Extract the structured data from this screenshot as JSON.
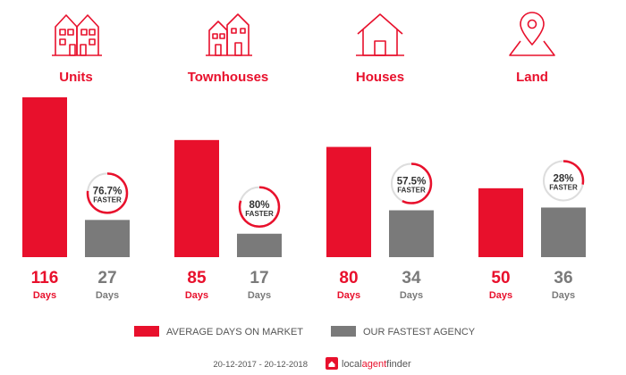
{
  "chart_data": {
    "type": "bar",
    "categories": [
      "Units",
      "Townhouses",
      "Houses",
      "Land"
    ],
    "icons": [
      "units-icon",
      "townhouses-icon",
      "house-icon",
      "land-pin-icon"
    ],
    "series": [
      {
        "key": "avg",
        "name": "AVERAGE DAYS ON MARKET",
        "color": "#e8102c",
        "values": [
          116,
          85,
          80,
          50
        ]
      },
      {
        "key": "fast",
        "name": "OUR FASTEST AGENCY",
        "color": "#7a7a7a",
        "values": [
          27,
          17,
          34,
          36
        ]
      }
    ],
    "unit_label": "Days",
    "faster": [
      {
        "pct_value": 76.7,
        "pct_label": "76.7%",
        "text": "FASTER"
      },
      {
        "pct_value": 80,
        "pct_label": "80%",
        "text": "FASTER"
      },
      {
        "pct_value": 57.5,
        "pct_label": "57.5%",
        "text": "FASTER"
      },
      {
        "pct_value": 28,
        "pct_label": "28%",
        "text": "FASTER"
      }
    ],
    "legend_position": "bottom",
    "grid": false
  },
  "footer": {
    "date_range": "20-12-2017 - 20-12-2018",
    "brand_local": "local",
    "brand_agent": "agent",
    "brand_finder": "finder"
  },
  "colors": {
    "red": "#e8102c",
    "gray": "#7a7a7a",
    "ring_track": "#dddddd"
  }
}
